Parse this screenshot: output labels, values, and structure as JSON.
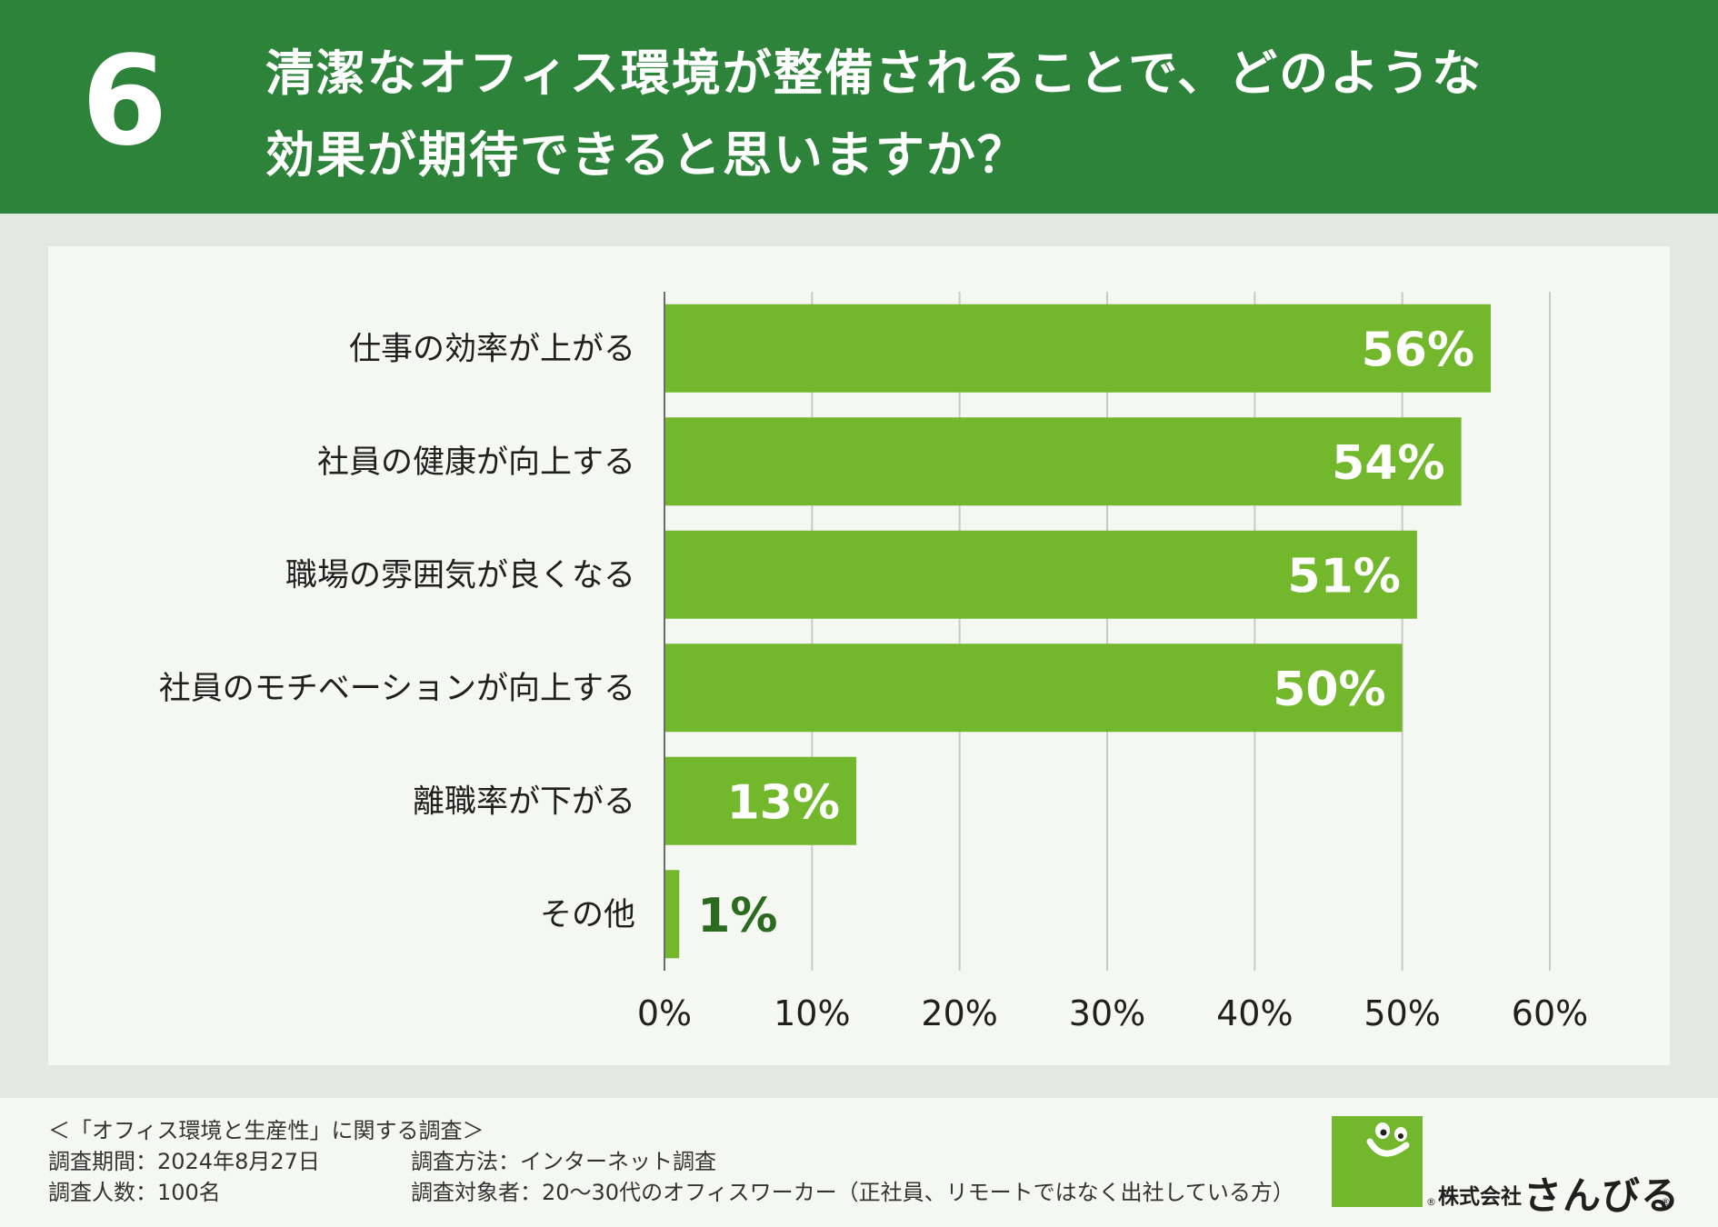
{
  "header": {
    "question_number": "6",
    "title": "清潔なオフィス環境が整備されることで、どのような\n効果が期待できると思いますか？"
  },
  "colors": {
    "header_bg": "#2e833b",
    "bar": "#73b82c",
    "value_label_inside": "#ffffff",
    "value_label_outside": "#2a6b1f",
    "grid": "#c9c9c9"
  },
  "chart_data": {
    "type": "bar",
    "orientation": "horizontal",
    "categories": [
      "仕事の効率が上がる",
      "社員の健康が向上する",
      "職場の雰囲気が良くなる",
      "社員のモチベーションが向上する",
      "離職率が下がる",
      "その他"
    ],
    "values": [
      56,
      54,
      51,
      50,
      13,
      1
    ],
    "value_labels": [
      "56%",
      "54%",
      "51%",
      "50%",
      "13%",
      "1%"
    ],
    "xlim": [
      0,
      60
    ],
    "xticks": [
      "0%",
      "10%",
      "20%",
      "30%",
      "40%",
      "50%",
      "60%"
    ],
    "grid": true
  },
  "footer": {
    "survey_title": "＜「オフィス環境と生産性」に関する調査＞",
    "period": "調査期間：2024年8月27日",
    "respondents": "調査人数：100名",
    "method": "調査方法：インターネット調査",
    "target": "調査対象者：20〜30代のオフィスワーカー（正社員、リモートではなく出社している方）"
  },
  "logo": {
    "registered_mark": "®",
    "corp_prefix": "株式会社",
    "company_name": "さんびる"
  }
}
